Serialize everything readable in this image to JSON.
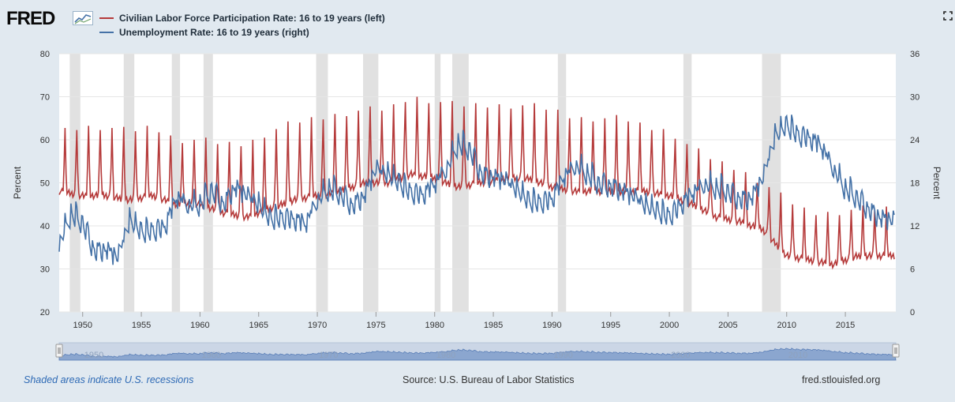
{
  "header": {
    "logo_text": "FRED",
    "legend": [
      {
        "label": "Civilian Labor Force Participation Rate: 16 to 19 years (left)",
        "color": "#b53a3a"
      },
      {
        "label": "Unemployment Rate: 16 to 19 years (right)",
        "color": "#4572a7"
      }
    ],
    "fullscreen_icon": "expand-icon"
  },
  "footer": {
    "recessions_note": "Shaded areas indicate U.S. recessions",
    "source": "Source: U.S. Bureau of Labor Statistics",
    "site": "fred.stlouisfed.org"
  },
  "navigator": {
    "labels": [
      "1950",
      "1960",
      "1970",
      "1980",
      "1990",
      "2000",
      "2010"
    ]
  },
  "chart_data": {
    "type": "line",
    "x_range": [
      1948.0,
      2019.3
    ],
    "x_ticks": [
      "1950",
      "1955",
      "1960",
      "1965",
      "1970",
      "1975",
      "1980",
      "1985",
      "1990",
      "1995",
      "2000",
      "2005",
      "2010",
      "2015"
    ],
    "y_left": {
      "label": "Percent",
      "range": [
        20,
        80
      ],
      "ticks": [
        "20",
        "30",
        "40",
        "50",
        "60",
        "70",
        "80"
      ]
    },
    "y_right": {
      "label": "Percent",
      "range": [
        0,
        36
      ],
      "ticks": [
        "0",
        "6",
        "12",
        "18",
        "24",
        "30",
        "36"
      ]
    },
    "grid": true,
    "legend_position": "top-left",
    "recessions": [
      [
        1948.9,
        1949.8
      ],
      [
        1953.5,
        1954.4
      ],
      [
        1957.6,
        1958.3
      ],
      [
        1960.3,
        1961.1
      ],
      [
        1969.9,
        1970.9
      ],
      [
        1973.9,
        1975.2
      ],
      [
        1980.0,
        1980.5
      ],
      [
        1981.5,
        1982.9
      ],
      [
        1990.5,
        1991.2
      ],
      [
        2001.2,
        2001.9
      ],
      [
        2007.9,
        2009.5
      ]
    ],
    "series": [
      {
        "name": "Civilian Labor Force Participation Rate: 16 to 19 years (left)",
        "axis": "left",
        "color": "#b53a3a",
        "x": [
          1948,
          1950,
          1952,
          1954,
          1956,
          1958,
          1960,
          1962,
          1964,
          1966,
          1968,
          1970,
          1972,
          1974,
          1976,
          1978,
          1980,
          1982,
          1984,
          1986,
          1988,
          1990,
          1992,
          1994,
          1996,
          1998,
          2000,
          2002,
          2004,
          2006,
          2008,
          2010,
          2012,
          2014,
          2016,
          2018,
          2019.2
        ],
        "base": [
          48,
          47,
          47,
          46,
          47,
          45,
          45,
          43,
          42,
          44,
          46,
          47,
          48,
          50,
          50,
          52,
          51,
          49,
          50,
          51,
          51,
          49,
          48,
          48,
          48,
          48,
          47,
          45,
          42,
          41,
          39,
          33,
          32,
          31,
          33,
          33,
          33
        ],
        "peak": [
          62,
          63,
          63,
          62,
          63,
          60,
          60,
          59,
          59,
          62,
          64,
          65,
          66,
          67,
          67,
          70,
          69,
          68,
          68,
          68,
          68,
          67,
          65,
          65,
          65,
          63,
          62,
          58,
          55,
          53,
          50,
          46,
          43,
          43,
          44,
          44,
          44
        ]
      },
      {
        "name": "Unemployment Rate: 16 to 19 years (right)",
        "axis": "right",
        "color": "#4572a7",
        "x": [
          1948,
          1949,
          1950,
          1951,
          1952,
          1953,
          1954,
          1955,
          1956,
          1957,
          1958,
          1959,
          1960,
          1961,
          1962,
          1963,
          1964,
          1965,
          1966,
          1967,
          1968,
          1969,
          1970,
          1971,
          1972,
          1973,
          1974,
          1975,
          1976,
          1977,
          1978,
          1979,
          1980,
          1981,
          1982,
          1983,
          1984,
          1985,
          1986,
          1987,
          1988,
          1989,
          1990,
          1991,
          1992,
          1993,
          1994,
          1995,
          1996,
          1997,
          1998,
          1999,
          2000,
          2001,
          2002,
          2003,
          2004,
          2005,
          2006,
          2007,
          2008,
          2009,
          2010,
          2011,
          2012,
          2013,
          2014,
          2015,
          2016,
          2017,
          2018,
          2019.2
        ],
        "values": [
          9.2,
          13.4,
          12.2,
          8.2,
          8.5,
          7.6,
          12.6,
          11.0,
          11.1,
          11.6,
          15.9,
          14.6,
          14.7,
          16.8,
          14.7,
          17.2,
          16.2,
          14.8,
          12.8,
          12.9,
          12.7,
          12.2,
          15.3,
          16.9,
          16.2,
          14.5,
          16.0,
          19.9,
          19.0,
          17.8,
          16.4,
          16.1,
          17.8,
          19.6,
          23.2,
          22.4,
          18.9,
          18.6,
          18.3,
          16.9,
          15.3,
          15.0,
          15.5,
          18.7,
          20.1,
          19.0,
          17.6,
          17.3,
          16.7,
          16.0,
          14.6,
          13.9,
          13.1,
          14.7,
          16.5,
          17.5,
          17.0,
          16.6,
          15.4,
          15.7,
          18.7,
          24.3,
          25.9,
          24.4,
          24.0,
          22.9,
          19.6,
          16.9,
          15.7,
          14.0,
          12.9,
          12.7
        ]
      }
    ]
  }
}
